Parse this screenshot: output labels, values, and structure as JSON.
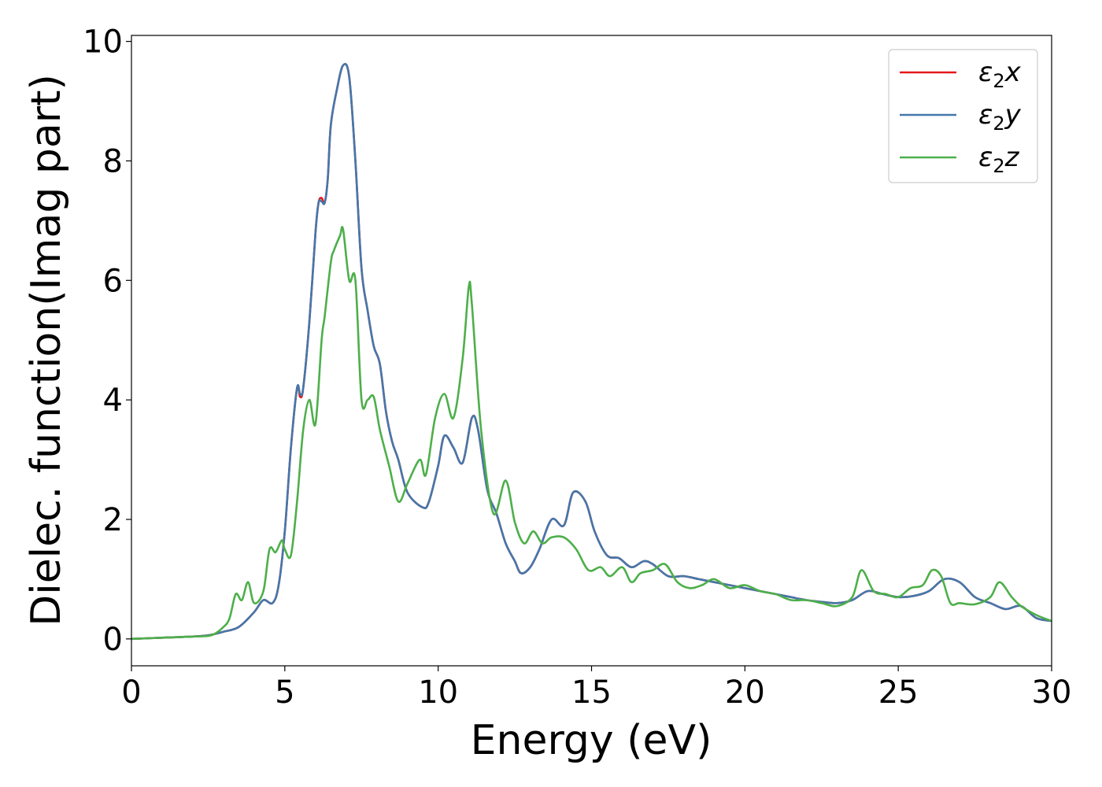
{
  "chart_data": {
    "type": "line",
    "title": "",
    "xlabel": "Energy (eV)",
    "ylabel": "Dielec. function(Imag part)",
    "xlim": [
      0,
      30
    ],
    "ylim": [
      -0.45,
      10.1
    ],
    "xticks": [
      0,
      5,
      10,
      15,
      20,
      25,
      30
    ],
    "yticks": [
      0,
      2,
      4,
      6,
      8,
      10
    ],
    "grid": false,
    "legend_position": "top-right",
    "series": [
      {
        "name": "ε2x",
        "legend": {
          "base": "ε",
          "sub": "2",
          "suffix": "x"
        },
        "color": "#e41a1c",
        "x": [
          0,
          1,
          2,
          2.5,
          3,
          3.5,
          4,
          4.3,
          4.6,
          4.8,
          5,
          5.2,
          5.4,
          5.5,
          5.6,
          5.8,
          6,
          6.1,
          6.2,
          6.3,
          6.4,
          6.5,
          6.7,
          6.9,
          7.1,
          7.3,
          7.5,
          7.7,
          7.9,
          8.1,
          8.3,
          8.5,
          8.7,
          9,
          9.5,
          9.7,
          10,
          10.2,
          10.5,
          10.8,
          11.1,
          11.3,
          11.6,
          11.9,
          12.2,
          12.5,
          12.7,
          13,
          13.3,
          13.7,
          14.1,
          14.4,
          14.8,
          15.1,
          15.5,
          15.9,
          16.3,
          16.7,
          17,
          17.5,
          18,
          18.5,
          19,
          19.5,
          20,
          20.5,
          21,
          21.5,
          22,
          22.5,
          23,
          23.5,
          24,
          24.5,
          25,
          25.5,
          26,
          26.5,
          27,
          27.5,
          28,
          28.5,
          29,
          29.5,
          30
        ],
        "values": [
          0,
          0.02,
          0.04,
          0.06,
          0.12,
          0.2,
          0.45,
          0.65,
          0.6,
          0.9,
          1.8,
          3.2,
          4.2,
          4.05,
          4.2,
          5.3,
          6.8,
          7.3,
          7.38,
          7.3,
          7.7,
          8.6,
          9.2,
          9.6,
          9.4,
          8.0,
          6.2,
          5.5,
          4.9,
          4.6,
          3.8,
          3.3,
          3.0,
          2.45,
          2.2,
          2.3,
          2.9,
          3.4,
          3.2,
          2.95,
          3.7,
          3.5,
          2.5,
          2.1,
          1.6,
          1.3,
          1.1,
          1.2,
          1.5,
          2.0,
          1.9,
          2.45,
          2.3,
          1.8,
          1.4,
          1.35,
          1.2,
          1.3,
          1.25,
          1.05,
          1.05,
          1.0,
          0.95,
          0.9,
          0.85,
          0.8,
          0.75,
          0.7,
          0.65,
          0.62,
          0.6,
          0.65,
          0.8,
          0.75,
          0.7,
          0.72,
          0.8,
          1.0,
          0.95,
          0.7,
          0.6,
          0.5,
          0.55,
          0.35,
          0.3
        ]
      },
      {
        "name": "ε2y",
        "legend": {
          "base": "ε",
          "sub": "2",
          "suffix": "y"
        },
        "color": "#4477aa",
        "x": [
          0,
          1,
          2,
          2.5,
          3,
          3.5,
          4,
          4.3,
          4.6,
          4.8,
          5,
          5.2,
          5.4,
          5.5,
          5.6,
          5.8,
          6,
          6.1,
          6.2,
          6.3,
          6.4,
          6.5,
          6.7,
          6.9,
          7.1,
          7.3,
          7.5,
          7.7,
          7.9,
          8.1,
          8.3,
          8.5,
          8.7,
          9,
          9.5,
          9.7,
          10,
          10.2,
          10.5,
          10.8,
          11.1,
          11.3,
          11.6,
          11.9,
          12.2,
          12.5,
          12.7,
          13,
          13.3,
          13.7,
          14.1,
          14.4,
          14.8,
          15.1,
          15.5,
          15.9,
          16.3,
          16.7,
          17,
          17.5,
          18,
          18.5,
          19,
          19.5,
          20,
          20.5,
          21,
          21.5,
          22,
          22.5,
          23,
          23.5,
          24,
          24.5,
          25,
          25.5,
          26,
          26.5,
          27,
          27.5,
          28,
          28.5,
          29,
          29.5,
          30
        ],
        "values": [
          0,
          0.02,
          0.04,
          0.06,
          0.12,
          0.2,
          0.45,
          0.65,
          0.6,
          0.9,
          1.8,
          3.2,
          4.2,
          4.1,
          4.2,
          5.3,
          6.8,
          7.3,
          7.32,
          7.3,
          7.7,
          8.6,
          9.2,
          9.6,
          9.4,
          8.0,
          6.2,
          5.5,
          4.9,
          4.6,
          3.8,
          3.3,
          3.0,
          2.45,
          2.2,
          2.3,
          2.9,
          3.4,
          3.2,
          2.95,
          3.7,
          3.5,
          2.5,
          2.1,
          1.6,
          1.3,
          1.1,
          1.2,
          1.5,
          2.0,
          1.9,
          2.45,
          2.3,
          1.8,
          1.4,
          1.35,
          1.2,
          1.3,
          1.25,
          1.05,
          1.05,
          1.0,
          0.95,
          0.9,
          0.85,
          0.8,
          0.75,
          0.7,
          0.65,
          0.62,
          0.6,
          0.65,
          0.8,
          0.75,
          0.7,
          0.72,
          0.8,
          1.0,
          0.95,
          0.7,
          0.6,
          0.5,
          0.55,
          0.35,
          0.3
        ]
      },
      {
        "name": "ε2z",
        "legend": {
          "base": "ε",
          "sub": "2",
          "suffix": "z"
        },
        "color": "#4daf4a",
        "x": [
          0,
          1,
          2,
          2.6,
          3,
          3.2,
          3.4,
          3.6,
          3.8,
          4.0,
          4.3,
          4.5,
          4.7,
          4.9,
          5.0,
          5.2,
          5.4,
          5.6,
          5.8,
          6.0,
          6.2,
          6.3,
          6.5,
          6.6,
          6.8,
          6.9,
          7.1,
          7.3,
          7.5,
          7.7,
          7.9,
          8.1,
          8.4,
          8.7,
          9.0,
          9.4,
          9.6,
          9.9,
          10.2,
          10.5,
          10.8,
          11.0,
          11.1,
          11.4,
          11.8,
          12.2,
          12.5,
          12.8,
          13.1,
          13.4,
          13.7,
          14.1,
          14.5,
          14.9,
          15.3,
          15.6,
          16,
          16.3,
          16.6,
          17,
          17.4,
          17.8,
          18.2,
          18.6,
          19,
          19.5,
          20,
          20.5,
          21,
          21.5,
          22,
          22.5,
          23,
          23.5,
          23.8,
          24.2,
          24.6,
          25,
          25.4,
          25.8,
          26.1,
          26.4,
          26.7,
          27,
          27.5,
          28,
          28.3,
          28.7,
          29,
          29.5,
          30
        ],
        "values": [
          0,
          0.02,
          0.04,
          0.06,
          0.2,
          0.35,
          0.75,
          0.65,
          0.95,
          0.6,
          0.8,
          1.5,
          1.45,
          1.65,
          1.5,
          1.4,
          2.3,
          3.5,
          4.0,
          3.6,
          5.0,
          5.4,
          6.3,
          6.5,
          6.75,
          6.85,
          6.0,
          6.0,
          4.0,
          4.0,
          4.05,
          3.5,
          2.9,
          2.3,
          2.6,
          3.0,
          2.75,
          3.7,
          4.1,
          3.7,
          4.7,
          5.9,
          5.6,
          3.5,
          2.1,
          2.65,
          1.95,
          1.6,
          1.8,
          1.6,
          1.7,
          1.7,
          1.5,
          1.15,
          1.2,
          1.05,
          1.2,
          0.95,
          1.1,
          1.15,
          1.25,
          0.95,
          0.85,
          0.9,
          1.0,
          0.85,
          0.9,
          0.8,
          0.75,
          0.65,
          0.65,
          0.6,
          0.55,
          0.7,
          1.15,
          0.8,
          0.75,
          0.7,
          0.85,
          0.9,
          1.15,
          1.05,
          0.6,
          0.6,
          0.58,
          0.7,
          0.95,
          0.7,
          0.55,
          0.4,
          0.3
        ]
      }
    ]
  }
}
